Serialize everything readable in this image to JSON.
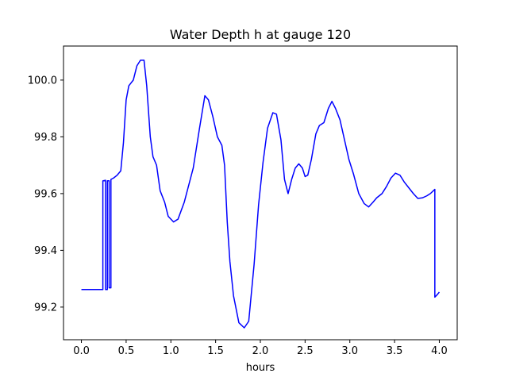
{
  "chart_data": {
    "type": "line",
    "title": "Water Depth h at gauge 120",
    "xlabel": "hours",
    "ylabel": "",
    "xlim": [
      -0.2,
      4.2
    ],
    "ylim": [
      99.085,
      100.12
    ],
    "xticks": [
      0.0,
      0.5,
      1.0,
      1.5,
      2.0,
      2.5,
      3.0,
      3.5,
      4.0
    ],
    "xtick_labels": [
      "0.0",
      "0.5",
      "1.0",
      "1.5",
      "2.0",
      "2.5",
      "3.0",
      "3.5",
      "4.0"
    ],
    "yticks": [
      99.2,
      99.4,
      99.6,
      99.8,
      100.0
    ],
    "ytick_labels": [
      "99.2",
      "99.4",
      "99.6",
      "99.8",
      "100.0"
    ],
    "grid": false,
    "series": [
      {
        "color": "#0000ff",
        "points": [
          [
            0.0,
            99.262
          ],
          [
            0.24,
            99.262
          ],
          [
            0.24,
            99.645
          ],
          [
            0.27,
            99.647
          ],
          [
            0.27,
            99.262
          ],
          [
            0.29,
            99.262
          ],
          [
            0.29,
            99.645
          ],
          [
            0.31,
            99.645
          ],
          [
            0.31,
            99.268
          ],
          [
            0.33,
            99.268
          ],
          [
            0.33,
            99.65
          ],
          [
            0.36,
            99.655
          ],
          [
            0.4,
            99.665
          ],
          [
            0.44,
            99.68
          ],
          [
            0.47,
            99.78
          ],
          [
            0.5,
            99.93
          ],
          [
            0.53,
            99.98
          ],
          [
            0.58,
            100.0
          ],
          [
            0.62,
            100.05
          ],
          [
            0.66,
            100.07
          ],
          [
            0.7,
            100.07
          ],
          [
            0.73,
            99.98
          ],
          [
            0.77,
            99.8
          ],
          [
            0.8,
            99.73
          ],
          [
            0.84,
            99.7
          ],
          [
            0.88,
            99.61
          ],
          [
            0.93,
            99.57
          ],
          [
            0.97,
            99.52
          ],
          [
            1.03,
            99.5
          ],
          [
            1.08,
            99.51
          ],
          [
            1.15,
            99.57
          ],
          [
            1.25,
            99.69
          ],
          [
            1.32,
            99.83
          ],
          [
            1.38,
            99.945
          ],
          [
            1.42,
            99.93
          ],
          [
            1.47,
            99.87
          ],
          [
            1.52,
            99.8
          ],
          [
            1.57,
            99.77
          ],
          [
            1.6,
            99.7
          ],
          [
            1.63,
            99.5
          ],
          [
            1.66,
            99.36
          ],
          [
            1.7,
            99.24
          ],
          [
            1.76,
            99.145
          ],
          [
            1.82,
            99.127
          ],
          [
            1.87,
            99.15
          ],
          [
            1.93,
            99.35
          ],
          [
            1.98,
            99.56
          ],
          [
            2.03,
            99.71
          ],
          [
            2.08,
            99.83
          ],
          [
            2.14,
            99.885
          ],
          [
            2.18,
            99.88
          ],
          [
            2.23,
            99.79
          ],
          [
            2.27,
            99.65
          ],
          [
            2.31,
            99.6
          ],
          [
            2.35,
            99.65
          ],
          [
            2.39,
            99.69
          ],
          [
            2.43,
            99.705
          ],
          [
            2.47,
            99.69
          ],
          [
            2.5,
            99.66
          ],
          [
            2.53,
            99.665
          ],
          [
            2.57,
            99.72
          ],
          [
            2.62,
            99.81
          ],
          [
            2.66,
            99.84
          ],
          [
            2.71,
            99.85
          ],
          [
            2.76,
            99.9
          ],
          [
            2.8,
            99.925
          ],
          [
            2.84,
            99.9
          ],
          [
            2.89,
            99.86
          ],
          [
            2.94,
            99.79
          ],
          [
            2.99,
            99.72
          ],
          [
            3.04,
            99.67
          ],
          [
            3.1,
            99.6
          ],
          [
            3.16,
            99.565
          ],
          [
            3.21,
            99.553
          ],
          [
            3.26,
            99.57
          ],
          [
            3.3,
            99.585
          ],
          [
            3.36,
            99.6
          ],
          [
            3.41,
            99.625
          ],
          [
            3.46,
            99.655
          ],
          [
            3.51,
            99.672
          ],
          [
            3.56,
            99.665
          ],
          [
            3.61,
            99.64
          ],
          [
            3.66,
            99.62
          ],
          [
            3.71,
            99.6
          ],
          [
            3.76,
            99.583
          ],
          [
            3.81,
            99.585
          ],
          [
            3.86,
            99.592
          ],
          [
            3.9,
            99.6
          ],
          [
            3.95,
            99.615
          ],
          [
            3.95,
            99.235
          ],
          [
            3.98,
            99.245
          ],
          [
            4.0,
            99.253
          ]
        ]
      }
    ]
  }
}
